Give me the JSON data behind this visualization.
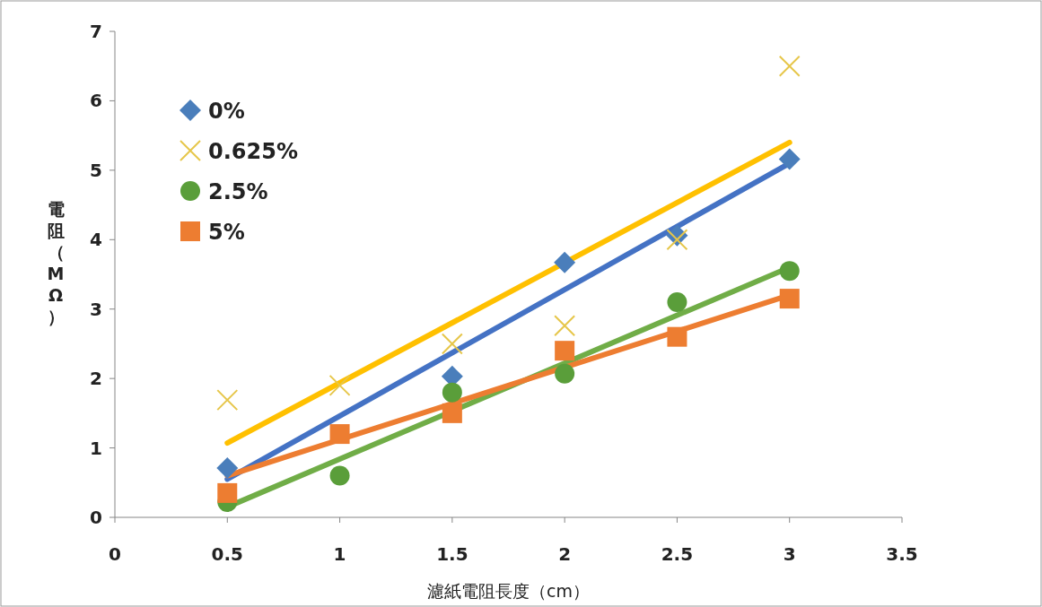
{
  "chart_data": {
    "type": "scatter",
    "xlabel": "濾紙電阻長度（cm）",
    "ylabel": "電阻（MΩ）",
    "xlim": [
      0,
      3.5
    ],
    "xticks": [
      0,
      0.5,
      1,
      1.5,
      2,
      2.5,
      3,
      3.5
    ],
    "ylim": [
      0,
      7
    ],
    "yticks": [
      0,
      1,
      2,
      3,
      4,
      5,
      6,
      7
    ],
    "grid": false,
    "legend": "top left",
    "series": [
      {
        "name": "0%",
        "type": "scatter",
        "marker": "diamond",
        "color": "#4a7ebb",
        "x": [
          0.5,
          1,
          1.5,
          2,
          2.5,
          3
        ],
        "values": [
          0.71,
          null,
          2.03,
          3.67,
          4.06,
          5.16
        ]
      },
      {
        "name": "0.625%",
        "type": "scatter",
        "marker": "cross",
        "color": "#e6c64a",
        "x": [
          0.5,
          1,
          1.5,
          2,
          2.5,
          3
        ],
        "values": [
          1.69,
          1.9,
          2.5,
          2.76,
          4.0,
          6.5
        ]
      },
      {
        "name": "2.5%",
        "type": "scatter",
        "marker": "circle",
        "color": "#5a9e3a",
        "x": [
          0.5,
          1,
          1.5,
          2,
          2.5,
          3
        ],
        "values": [
          0.22,
          0.6,
          1.8,
          2.07,
          3.1,
          3.55
        ]
      },
      {
        "name": "5%",
        "type": "scatter",
        "marker": "square",
        "color": "#ed7d31",
        "x": [
          0.5,
          1,
          1.5,
          2,
          2.5,
          3
        ],
        "values": [
          0.35,
          1.2,
          1.5,
          2.4,
          2.6,
          3.15
        ]
      },
      {
        "type": "line",
        "marker": "none",
        "color": "#ffc000",
        "x": [
          0.5,
          3
        ],
        "values": [
          1.07,
          5.4
        ]
      },
      {
        "type": "line",
        "marker": "none",
        "color": "#4472c4",
        "x": [
          0.5,
          3
        ],
        "values": [
          0.55,
          5.1
        ]
      },
      {
        "type": "line",
        "marker": "none",
        "color": "#70ad47",
        "x": [
          0.5,
          3
        ],
        "values": [
          0.15,
          3.6
        ]
      },
      {
        "type": "line",
        "marker": "none",
        "color": "#ed7d31",
        "x": [
          0.5,
          3
        ],
        "values": [
          0.6,
          3.2
        ]
      }
    ]
  }
}
